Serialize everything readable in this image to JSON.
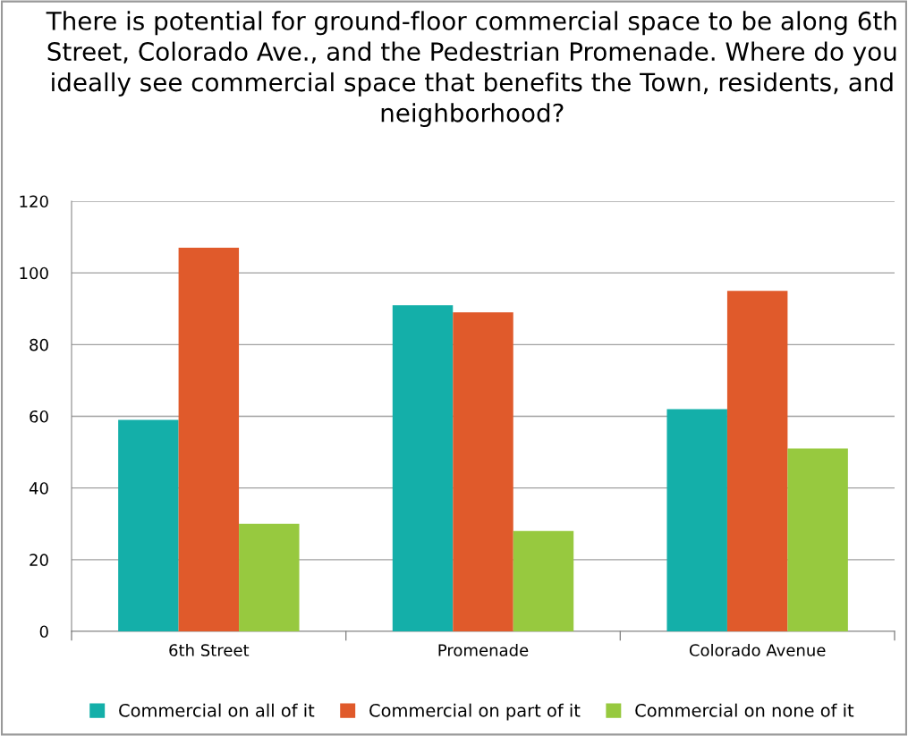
{
  "chart_data": {
    "type": "bar",
    "title": "There is potential for ground-floor commercial space to be along 6th Street, Colorado Ave., and the Pedestrian Promenade. Where do you ideally see commercial space that benefits the Town, residents, and neighborhood?",
    "categories": [
      "6th Street",
      "Promenade",
      "Colorado Avenue"
    ],
    "series": [
      {
        "name": "Commercial on all of it",
        "color": "#14afa9",
        "values": [
          59,
          91,
          62
        ]
      },
      {
        "name": "Commercial on part of it",
        "color": "#e05a2b",
        "values": [
          107,
          89,
          95
        ]
      },
      {
        "name": "Commercial on none of it",
        "color": "#97c93f",
        "values": [
          30,
          28,
          51
        ]
      }
    ],
    "ylim": [
      0,
      120
    ],
    "yticks": [
      0,
      20,
      40,
      60,
      80,
      100,
      120
    ],
    "grid": "y",
    "legend": "bottom"
  }
}
